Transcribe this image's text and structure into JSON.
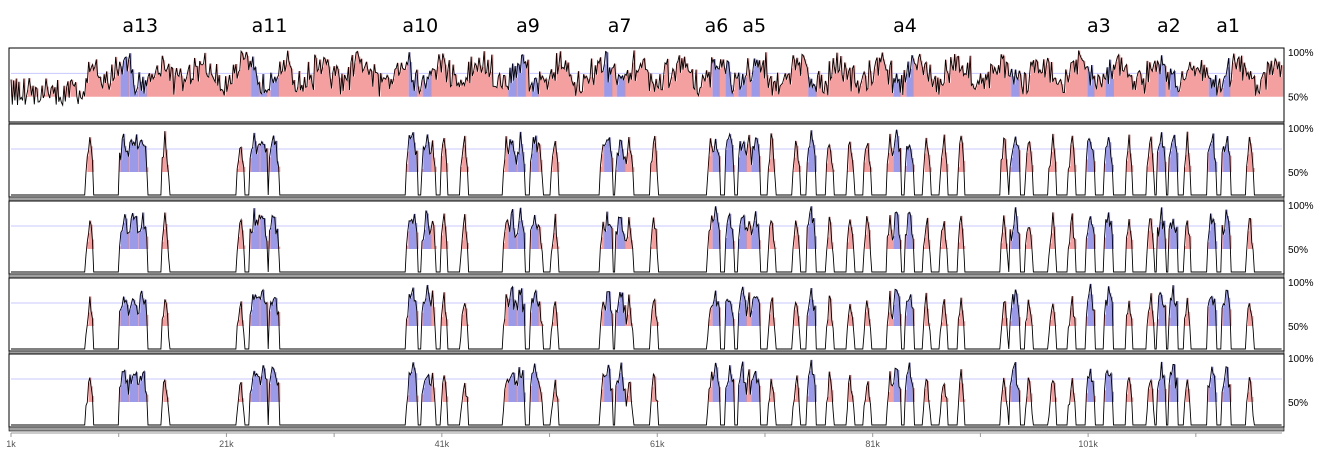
{
  "chart_data": {
    "type": "area",
    "x_axis": {
      "ticks": [
        "1k",
        "21k",
        "41k",
        "61k",
        "81k",
        "101k"
      ],
      "tick_values": [
        1,
        21,
        41,
        61,
        81,
        101
      ],
      "range": [
        1,
        119
      ]
    },
    "y_axis": {
      "labels": [
        "100%",
        "50%"
      ],
      "range": [
        50,
        100
      ]
    },
    "regions": [
      {
        "name": "a13",
        "position": 13
      },
      {
        "name": "a11",
        "position": 25
      },
      {
        "name": "a10",
        "position": 39
      },
      {
        "name": "a9",
        "position": 49
      },
      {
        "name": "a7",
        "position": 57.5
      },
      {
        "name": "a6",
        "position": 66.5
      },
      {
        "name": "a5",
        "position": 70
      },
      {
        "name": "a4",
        "position": 84
      },
      {
        "name": "a3",
        "position": 102
      },
      {
        "name": "a2",
        "position": 108.5
      },
      {
        "name": "a1",
        "position": 114
      }
    ],
    "series_count": 5,
    "colors": {
      "noncoding_fill": "#f4a0a0",
      "exon_fill": "#9a9ae8",
      "line": "#000000",
      "gridline": "#c8c8ff",
      "separator": "#a0a0a0"
    }
  }
}
